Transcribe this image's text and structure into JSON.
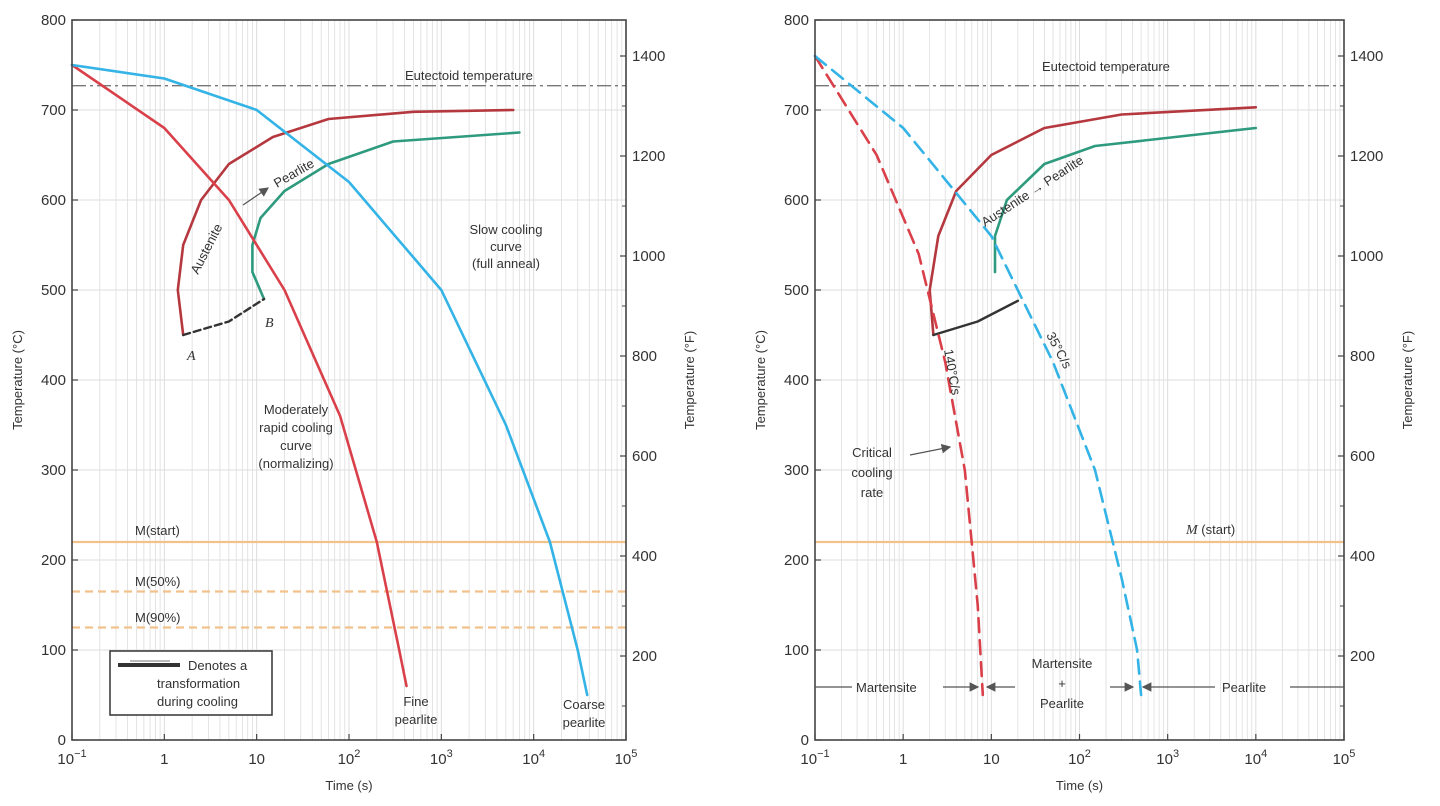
{
  "colors": {
    "red": "#d9404a",
    "blue": "#33b3e6",
    "green": "#2e9a7e",
    "orange": "#f2c28c",
    "grid": "#dddddd",
    "black": "#333333"
  },
  "chart_data": [
    {
      "type": "line",
      "xscale": "log",
      "xlim": [
        0.1,
        100000
      ],
      "ylim": [
        0,
        800
      ],
      "ylim_right_F": [
        32,
        1472
      ],
      "xlabel": "Time (s)",
      "ylabel": "Temperature (°C)",
      "ylabel_right": "Temperature (°F)",
      "x_ticks": [
        {
          "base": "10",
          "exp": "−1"
        },
        {
          "base": "1",
          "exp": ""
        },
        {
          "base": "10",
          "exp": ""
        },
        {
          "base": "10",
          "exp": "2"
        },
        {
          "base": "10",
          "exp": "3"
        },
        {
          "base": "10",
          "exp": "4"
        },
        {
          "base": "10",
          "exp": "5"
        }
      ],
      "y_ticks": [
        "0",
        "100",
        "200",
        "300",
        "400",
        "500",
        "600",
        "700",
        "800"
      ],
      "y_right_ticks": [
        "200",
        "400",
        "600",
        "800",
        "1000",
        "1200",
        "1400"
      ],
      "eutectoid_C": 727,
      "m_lines": [
        {
          "label": "M(start)",
          "T": 220,
          "style": "solid"
        },
        {
          "label": "M(50%)",
          "T": 165,
          "style": "dashed"
        },
        {
          "label": "M(90%)",
          "T": 125,
          "style": "dashed"
        }
      ],
      "transformation_start": [
        [
          1.6,
          450
        ],
        [
          1.4,
          500
        ],
        [
          1.6,
          550
        ],
        [
          2.5,
          600
        ],
        [
          5,
          640
        ],
        [
          15,
          670
        ],
        [
          60,
          690
        ],
        [
          500,
          698
        ],
        [
          6000,
          700
        ]
      ],
      "transformation_end": [
        [
          12,
          490
        ],
        [
          9,
          520
        ],
        [
          9,
          550
        ],
        [
          11,
          580
        ],
        [
          20,
          610
        ],
        [
          60,
          640
        ],
        [
          300,
          665
        ],
        [
          7000,
          675
        ]
      ],
      "dashed_AB": [
        [
          1.6,
          450
        ],
        [
          5,
          465
        ],
        [
          12,
          490
        ]
      ],
      "series": [
        {
          "name": "Moderately rapid cooling curve (normalizing)",
          "color": "red",
          "points": [
            [
              0.1,
              750
            ],
            [
              1,
              680
            ],
            [
              5,
              600
            ],
            [
              20,
              500
            ],
            [
              80,
              360
            ],
            [
              200,
              220
            ],
            [
              350,
              100
            ],
            [
              420,
              60
            ]
          ]
        },
        {
          "name": "Slow cooling curve (full anneal)",
          "color": "blue",
          "points": [
            [
              0.1,
              750
            ],
            [
              1,
              735
            ],
            [
              10,
              700
            ],
            [
              100,
              620
            ],
            [
              1000,
              500
            ],
            [
              5000,
              350
            ],
            [
              15000,
              220
            ],
            [
              30000,
              100
            ],
            [
              38000,
              50
            ]
          ]
        }
      ],
      "text": {
        "eutectoid": "Eutectoid temperature",
        "austenite": "Austenite",
        "pearlite": "Pearlite",
        "label_a": "A",
        "label_b": "B",
        "slow": [
          "Slow cooling",
          "curve",
          "(full anneal)"
        ],
        "moderate": [
          "Moderately",
          "rapid cooling",
          "curve",
          "(normalizing)"
        ],
        "m_start": "M(start)",
        "m_50": "M(50%)",
        "m_90": "M(90%)",
        "legend": [
          "Denotes a",
          "transformation",
          "during cooling"
        ],
        "fine": [
          "Fine",
          "pearlite"
        ],
        "coarse": [
          "Coarse",
          "pearlite"
        ]
      }
    },
    {
      "type": "line",
      "xscale": "log",
      "xlim": [
        0.1,
        100000
      ],
      "ylim": [
        0,
        800
      ],
      "ylim_right_F": [
        32,
        1472
      ],
      "xlabel": "Time (s)",
      "ylabel": "Temperature (°C)",
      "ylabel_right": "Temperature (°F)",
      "x_ticks": [
        {
          "base": "10",
          "exp": "−1"
        },
        {
          "base": "1",
          "exp": ""
        },
        {
          "base": "10",
          "exp": ""
        },
        {
          "base": "10",
          "exp": "2"
        },
        {
          "base": "10",
          "exp": "3"
        },
        {
          "base": "10",
          "exp": "4"
        },
        {
          "base": "10",
          "exp": "5"
        }
      ],
      "y_ticks": [
        "0",
        "100",
        "200",
        "300",
        "400",
        "500",
        "600",
        "700",
        "800"
      ],
      "y_right_ticks": [
        "200",
        "400",
        "600",
        "800",
        "1000",
        "1200",
        "1400"
      ],
      "eutectoid_C": 727,
      "m_lines": [
        {
          "label": "M (start)",
          "T": 220,
          "style": "solid"
        }
      ],
      "transformation_start": [
        [
          2.2,
          450
        ],
        [
          2,
          500
        ],
        [
          2.5,
          560
        ],
        [
          4,
          610
        ],
        [
          10,
          650
        ],
        [
          40,
          680
        ],
        [
          300,
          695
        ],
        [
          10000,
          703
        ]
      ],
      "transformation_end": [
        [
          11,
          520
        ],
        [
          11,
          560
        ],
        [
          15,
          600
        ],
        [
          40,
          640
        ],
        [
          150,
          660
        ],
        [
          10000,
          680
        ]
      ],
      "solid_AB": [
        [
          2.2,
          450
        ],
        [
          7,
          465
        ],
        [
          20,
          488
        ]
      ],
      "series": [
        {
          "name": "140°C/s",
          "color": "red",
          "style": "dashed",
          "points": [
            [
              0.1,
              760
            ],
            [
              0.5,
              650
            ],
            [
              1.5,
              540
            ],
            [
              3,
              420
            ],
            [
              5,
              300
            ],
            [
              7,
              150
            ],
            [
              8,
              50
            ]
          ]
        },
        {
          "name": "35°C/s",
          "color": "blue",
          "style": "dashed",
          "points": [
            [
              0.1,
              760
            ],
            [
              1,
              680
            ],
            [
              10,
              560
            ],
            [
              50,
              420
            ],
            [
              150,
              300
            ],
            [
              300,
              180
            ],
            [
              450,
              100
            ],
            [
              500,
              50
            ]
          ]
        }
      ],
      "text": {
        "eutectoid": "Eutectoid temperature",
        "austenite_pearlite": "Austenite → Pearlite",
        "rate_fast": "140°C/s",
        "rate_slow": "35°C/s",
        "critical": [
          "Critical",
          "cooling",
          "rate"
        ],
        "m_start_M": "M",
        "m_start_rest": "(start)",
        "martensite": "Martensite",
        "martensite_pearlite": [
          "Martensite",
          "+",
          "Pearlite"
        ],
        "pearlite": "Pearlite"
      }
    }
  ]
}
